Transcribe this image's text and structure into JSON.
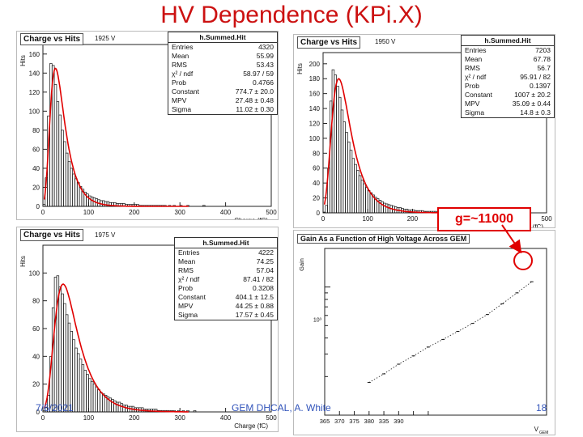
{
  "slide": {
    "title": "HV Dependence (KPi.X)",
    "footer_date": "7/6/2021",
    "footer_center": "GEM DHCAL, A. White",
    "page_number": "18",
    "gain_callout": "g=~11000",
    "colors": {
      "title": "#cc1111",
      "fit": "#e00000",
      "footer": "#3355bb",
      "callout": "#e00000"
    }
  },
  "panels": [
    {
      "title": "Charge vs Hits",
      "voltage": "1925 V",
      "ylabel": "Hits",
      "xlabel": "Charge (fC)",
      "stats_header": "h.Summed.Hit",
      "stats": [
        {
          "k": "Entries",
          "v": "4320"
        },
        {
          "k": "Mean",
          "v": "55.99"
        },
        {
          "k": "RMS",
          "v": "53.43"
        },
        {
          "k": "χ² / ndf",
          "v": "58.97 / 59"
        },
        {
          "k": "Prob",
          "v": "0.4766"
        },
        {
          "k": "Constant",
          "v": "774.7 ± 20.0"
        },
        {
          "k": "MPV",
          "v": "27.48 ± 0.48"
        },
        {
          "k": "Sigma",
          "v": "11.02 ± 0.30"
        }
      ]
    },
    {
      "title": "Charge vs Hits",
      "voltage": "1950 V",
      "ylabel": "Hits",
      "xlabel": "(fC)",
      "stats_header": "h.Summed.Hit",
      "stats": [
        {
          "k": "Entries",
          "v": "7203"
        },
        {
          "k": "Mean",
          "v": "67.78"
        },
        {
          "k": "RMS",
          "v": "56.7"
        },
        {
          "k": "χ² / ndf",
          "v": "95.91 / 82"
        },
        {
          "k": "Prob",
          "v": "0.1397"
        },
        {
          "k": "Constant",
          "v": "1007 ± 20.2"
        },
        {
          "k": "MPV",
          "v": "35.09 ± 0.44"
        },
        {
          "k": "Sigma",
          "v": "14.8 ± 0.3"
        }
      ]
    },
    {
      "title": "Charge vs Hits",
      "voltage": "1975 V",
      "ylabel": "Hits",
      "xlabel": "Charge (fC)",
      "stats_header": "h.Summed.Hit",
      "stats": [
        {
          "k": "Entries",
          "v": "4222"
        },
        {
          "k": "Mean",
          "v": "74.25"
        },
        {
          "k": "RMS",
          "v": "57.04"
        },
        {
          "k": "χ² / ndf",
          "v": "87.41 / 82"
        },
        {
          "k": "Prob",
          "v": "0.3208"
        },
        {
          "k": "Constant",
          "v": "404.1 ± 12.5"
        },
        {
          "k": "MPV",
          "v": "44.25 ± 0.88"
        },
        {
          "k": "Sigma",
          "v": "17.57 ± 0.45"
        }
      ]
    }
  ],
  "gain_panel": {
    "title": "Gain As a Function of High Voltage Across GEM",
    "ylabel": "Gain",
    "ytick": "10³",
    "xlabel": "V",
    "xlabel_sub": "GEM"
  },
  "chart_data": [
    {
      "type": "bar",
      "xlim": [
        0,
        500
      ],
      "ylim": [
        0,
        170
      ],
      "xticks": [
        0,
        100,
        200,
        300,
        400,
        500
      ],
      "yticks": [
        0,
        20,
        40,
        60,
        80,
        100,
        120,
        140,
        160
      ],
      "landau_fit": {
        "mpv": 27.48,
        "sigma": 11.02,
        "peak": 145
      },
      "bin_width": 5,
      "values": [
        2,
        30,
        95,
        150,
        148,
        128,
        110,
        96,
        80,
        68,
        56,
        47,
        40,
        34,
        29,
        25,
        21,
        18,
        15,
        13,
        11,
        10,
        9,
        8,
        7,
        6,
        6,
        5,
        5,
        4,
        4,
        4,
        3,
        3,
        3,
        3,
        2,
        2,
        2,
        2,
        2,
        2,
        1,
        1,
        1,
        1,
        1,
        1,
        1,
        1,
        1,
        1,
        1,
        1,
        0,
        1,
        0,
        1,
        0,
        0,
        1,
        0,
        0,
        1,
        0,
        0,
        0,
        0,
        0,
        0,
        1,
        0,
        0,
        0,
        0,
        0,
        0,
        0,
        0,
        0,
        0,
        0,
        0,
        0,
        0,
        0,
        0,
        0,
        0,
        0,
        0,
        0,
        0,
        0,
        0,
        0,
        0,
        0,
        0,
        0
      ]
    },
    {
      "type": "bar",
      "xlim": [
        0,
        500
      ],
      "ylim": [
        0,
        215
      ],
      "xticks": [
        0,
        100,
        200,
        300,
        400,
        500
      ],
      "yticks": [
        0,
        20,
        40,
        60,
        80,
        100,
        120,
        140,
        160,
        180,
        200
      ],
      "landau_fit": {
        "mpv": 35.09,
        "sigma": 14.8,
        "peak": 180
      },
      "bin_width": 5,
      "values": [
        1,
        10,
        60,
        150,
        192,
        185,
        170,
        155,
        138,
        122,
        108,
        95,
        84,
        73,
        65,
        57,
        50,
        44,
        39,
        34,
        30,
        27,
        24,
        21,
        19,
        17,
        15,
        13,
        12,
        11,
        10,
        9,
        8,
        7,
        7,
        6,
        5,
        5,
        4,
        4,
        4,
        3,
        3,
        3,
        3,
        2,
        2,
        2,
        2,
        2,
        2,
        1,
        1,
        1,
        1,
        1,
        1,
        1,
        1,
        1,
        1,
        1,
        0,
        1,
        0,
        1,
        0,
        0,
        1,
        0,
        0,
        0,
        0,
        0,
        0,
        0,
        0,
        0,
        0,
        0,
        0,
        0,
        0,
        0,
        0,
        0,
        0,
        0,
        0,
        0,
        0,
        0,
        0,
        0,
        0,
        0,
        0,
        0,
        0,
        0
      ]
    },
    {
      "type": "bar",
      "xlim": [
        0,
        500
      ],
      "ylim": [
        0,
        120
      ],
      "xticks": [
        0,
        100,
        200,
        300,
        400,
        500
      ],
      "yticks": [
        0,
        20,
        40,
        60,
        80,
        100
      ],
      "landau_fit": {
        "mpv": 44.25,
        "sigma": 17.57,
        "peak": 92
      },
      "bin_width": 5,
      "values": [
        1,
        3,
        12,
        40,
        75,
        97,
        98,
        90,
        85,
        78,
        70,
        64,
        58,
        52,
        46,
        42,
        38,
        34,
        30,
        27,
        24,
        22,
        20,
        18,
        16,
        14,
        13,
        12,
        11,
        10,
        9,
        8,
        7,
        7,
        6,
        5,
        5,
        4,
        4,
        4,
        3,
        3,
        3,
        3,
        2,
        2,
        2,
        2,
        2,
        2,
        1,
        1,
        1,
        1,
        1,
        1,
        1,
        1,
        0,
        1,
        0,
        1,
        0,
        1,
        0,
        0,
        1,
        0,
        0,
        0,
        0,
        0,
        0,
        0,
        0,
        0,
        0,
        0,
        0,
        0,
        0,
        0,
        0,
        0,
        0,
        0,
        0,
        0,
        0,
        0,
        0,
        0,
        0,
        0,
        0,
        0,
        0,
        0,
        0,
        0
      ]
    },
    {
      "type": "line",
      "xlim": [
        1905,
        1980
      ],
      "xticks": [
        1905,
        1910,
        1915,
        1920,
        1925,
        1930,
        1935,
        1940
      ],
      "xtick_labels": [
        "365",
        "370",
        "375",
        "380",
        "335",
        "390",
        "",
        ""
      ],
      "log_y": true,
      "ylim": [
        1000,
        20000
      ],
      "x": [
        1920,
        1925,
        1930,
        1935,
        1940,
        1945,
        1950,
        1955,
        1960,
        1965,
        1970,
        1975
      ],
      "y": [
        1800,
        2100,
        2500,
        2900,
        3400,
        3900,
        4500,
        5200,
        6100,
        7400,
        9000,
        11000
      ]
    }
  ]
}
